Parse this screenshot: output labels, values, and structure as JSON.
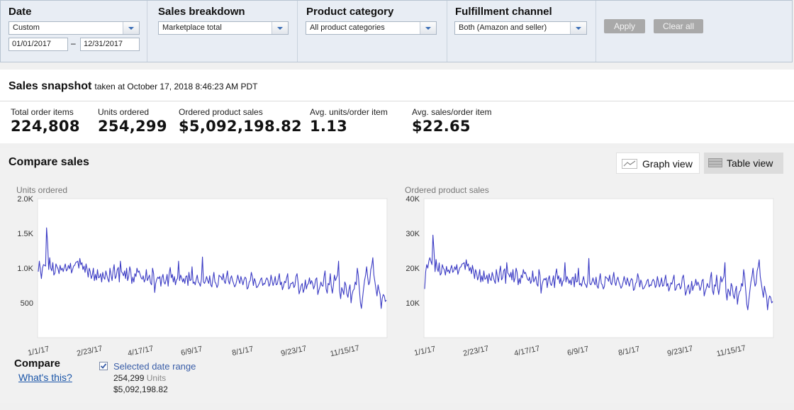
{
  "filters": {
    "date": {
      "title": "Date",
      "preset": "Custom",
      "from": "01/01/2017",
      "dash": "–",
      "to": "12/31/2017"
    },
    "sales_breakdown": {
      "title": "Sales breakdown",
      "value": "Marketplace total"
    },
    "product_category": {
      "title": "Product category",
      "value": "All product categories"
    },
    "fulfillment": {
      "title": "Fulfillment channel",
      "value": "Both (Amazon and seller)"
    },
    "apply_label": "Apply",
    "clear_label": "Clear all"
  },
  "snapshot": {
    "title": "Sales snapshot",
    "subtitle": "taken at October 17, 2018 8:46:23 AM PDT",
    "metrics": [
      {
        "label": "Total order items",
        "value": "224,808"
      },
      {
        "label": "Units ordered",
        "value": "254,299"
      },
      {
        "label": "Ordered product sales",
        "value": "$5,092,198.82"
      },
      {
        "label": "Avg. units/order item",
        "value": "1.13"
      },
      {
        "label": "Avg. sales/order item",
        "value": "$22.65"
      }
    ]
  },
  "compare": {
    "title": "Compare sales",
    "graph_view": "Graph view",
    "table_view": "Table view",
    "compare_label": "Compare",
    "whats_this": "What's this?",
    "selected_label": "Selected date range",
    "units_value": "254,299",
    "units_word": "Units",
    "sales_value": "$5,092,198.82",
    "checkbox_checked": true
  },
  "colors": {
    "line": "#3b3bc4",
    "link": "#1a55a8",
    "check": "#3a5ea8"
  },
  "chart_data": [
    {
      "type": "line",
      "title": "Units ordered",
      "ylim": [
        0,
        2000
      ],
      "yticks": [
        {
          "v": 2000,
          "t": "2.0K"
        },
        {
          "v": 1500,
          "t": "1.5K"
        },
        {
          "v": 1000,
          "t": "1.0K"
        },
        {
          "v": 500,
          "t": "500"
        }
      ],
      "xtick_labels": [
        "1/1/17",
        "2/23/17",
        "4/17/17",
        "6/9/17",
        "8/1/17",
        "9/23/17",
        "11/15/17"
      ],
      "grid": false,
      "series": [
        {
          "values": [
            950,
            1100,
            980,
            850,
            1000,
            1050,
            1040,
            1030,
            1580,
            1350,
            980,
            1150,
            1000,
            960,
            1080,
            900,
            930,
            1060,
            1020,
            990,
            920,
            1040,
            970,
            1000,
            950,
            1010,
            1060,
            960,
            980,
            1040,
            990,
            1070,
            930,
            980,
            1030,
            1040,
            1080,
            1090,
            1100,
            1000,
            1140,
            1050,
            1080,
            980,
            1030,
            940,
            1060,
            980,
            870,
            1000,
            950,
            850,
            900,
            1000,
            820,
            910,
            830,
            980,
            860,
            870,
            920,
            800,
            940,
            870,
            840,
            960,
            900,
            840,
            800,
            1000,
            900,
            820,
            960,
            1050,
            850,
            880,
            980,
            1010,
            800,
            1100,
            950,
            930,
            890,
            960,
            850,
            1000,
            820,
            880,
            1020,
            960,
            780,
            870,
            800,
            920,
            880,
            1000,
            940,
            960,
            910,
            860,
            840,
            890,
            800,
            840,
            980,
            820,
            860,
            900,
            790,
            760,
            1000,
            920,
            650,
            780,
            840,
            870,
            850,
            880,
            740,
            860,
            910,
            800,
            770,
            830,
            910,
            740,
            930,
            1010,
            860,
            910,
            800,
            880,
            760,
            830,
            850,
            1100,
            820,
            900,
            860,
            800,
            850,
            780,
            880,
            890,
            750,
            940,
            820,
            830,
            1020,
            780,
            800,
            760,
            840,
            900,
            800,
            780,
            740,
            840,
            1160,
            800,
            780,
            820,
            880,
            820,
            780,
            890,
            760,
            730,
            840,
            940,
            800,
            780,
            720,
            760,
            900,
            880,
            870,
            830,
            920,
            810,
            780,
            870,
            960,
            820,
            770,
            850,
            890,
            820,
            780,
            730,
            760,
            820,
            900,
            830,
            780,
            880,
            820,
            760,
            830,
            870,
            850,
            700,
            720,
            800,
            820,
            940,
            880,
            750,
            850,
            810,
            720,
            730,
            760,
            790,
            840,
            860,
            750,
            780,
            770,
            830,
            860,
            830,
            740,
            770,
            900,
            820,
            750,
            800,
            880,
            760,
            770,
            850,
            920,
            760,
            800,
            690,
            740,
            810,
            790,
            860,
            920,
            700,
            720,
            780,
            780,
            800,
            720,
            750,
            880,
            920,
            800,
            630,
            680,
            750,
            780,
            650,
            700,
            830,
            700,
            760,
            780,
            860,
            770,
            820,
            780,
            700,
            750,
            840,
            860,
            620,
            680,
            730,
            800,
            750,
            740,
            880,
            960,
            700,
            640,
            780,
            760,
            920,
            740,
            640,
            750,
            900,
            820,
            860,
            900,
            1100,
            680,
            560,
            720,
            680,
            620,
            800,
            760,
            630,
            580,
            690,
            760,
            500,
            620,
            680,
            700,
            800,
            760,
            1000,
            900,
            700,
            500,
            420,
            560,
            700,
            820,
            900,
            1020,
            870,
            760,
            800,
            980,
            1040,
            1150,
            900,
            800,
            700,
            600,
            760,
            680,
            620,
            420,
            560,
            620,
            600,
            520,
            540
          ]
        }
      ]
    },
    {
      "type": "line",
      "title": "Ordered product sales",
      "ylim": [
        0,
        40000
      ],
      "yticks": [
        {
          "v": 40000,
          "t": "40K"
        },
        {
          "v": 30000,
          "t": "30K"
        },
        {
          "v": 20000,
          "t": "20K"
        },
        {
          "v": 10000,
          "t": "10K"
        }
      ],
      "xtick_labels": [
        "1/1/17",
        "2/23/17",
        "4/17/17",
        "6/9/17",
        "8/1/17",
        "9/23/17",
        "11/15/17"
      ],
      "grid": false,
      "series": [
        {
          "values": [
            14000,
            19000,
            21000,
            20000,
            22000,
            23000,
            22000,
            21000,
            29500,
            25000,
            19000,
            22500,
            20000,
            19000,
            21500,
            18000,
            18500,
            21000,
            20000,
            19500,
            18000,
            20500,
            19000,
            19500,
            18500,
            19800,
            20800,
            18800,
            19200,
            20400,
            19500,
            21000,
            18200,
            19300,
            20200,
            20400,
            21200,
            21300,
            21600,
            19600,
            22400,
            20600,
            21200,
            19200,
            20200,
            18400,
            20800,
            19200,
            17000,
            19600,
            18600,
            16600,
            17600,
            19600,
            16000,
            17800,
            16200,
            19200,
            16800,
            17000,
            18000,
            15600,
            18400,
            17000,
            16400,
            18800,
            17600,
            16400,
            15600,
            19600,
            17600,
            16000,
            18800,
            20600,
            16600,
            17200,
            19200,
            19800,
            15600,
            21600,
            18600,
            18200,
            17400,
            18800,
            16600,
            19600,
            16000,
            17200,
            20000,
            18800,
            15200,
            17000,
            15600,
            18000,
            17200,
            19600,
            18400,
            18800,
            17800,
            16800,
            16400,
            17400,
            15600,
            16400,
            19200,
            16000,
            16800,
            17600,
            15400,
            14800,
            19600,
            18000,
            12800,
            15200,
            16400,
            17000,
            16600,
            17200,
            14400,
            16800,
            17800,
            15600,
            15000,
            16200,
            17800,
            14400,
            18200,
            19800,
            16800,
            17800,
            15600,
            17200,
            14800,
            16200,
            16600,
            21600,
            16000,
            17600,
            16800,
            15600,
            16600,
            15200,
            17200,
            17400,
            14600,
            18400,
            16000,
            16200,
            20000,
            15200,
            15600,
            14800,
            16400,
            17600,
            15600,
            15200,
            14400,
            16400,
            22800,
            15600,
            15200,
            16000,
            17200,
            16000,
            15200,
            17400,
            14800,
            14200,
            16400,
            18400,
            15600,
            15200,
            14000,
            14800,
            17600,
            17200,
            17000,
            16200,
            18000,
            15800,
            15200,
            17000,
            18800,
            16000,
            15000,
            16600,
            17400,
            16000,
            15200,
            14200,
            14800,
            16000,
            17600,
            16200,
            15200,
            17200,
            16000,
            14800,
            16200,
            17000,
            16600,
            13600,
            14000,
            15600,
            16000,
            18400,
            17200,
            14600,
            16600,
            15800,
            14000,
            14200,
            14800,
            15400,
            16400,
            16800,
            14600,
            15200,
            15000,
            16200,
            16800,
            16200,
            14400,
            15000,
            17600,
            16000,
            14600,
            15600,
            17200,
            14800,
            15000,
            16600,
            18000,
            14800,
            15600,
            13400,
            14400,
            15800,
            15400,
            16800,
            18000,
            13600,
            14000,
            15200,
            15200,
            15600,
            14000,
            14600,
            17200,
            18000,
            15600,
            12200,
            13200,
            14600,
            15200,
            12600,
            13600,
            16200,
            13600,
            14800,
            15200,
            16800,
            15000,
            16000,
            15200,
            13600,
            14600,
            16400,
            16800,
            12000,
            13200,
            14200,
            15600,
            14600,
            14400,
            17200,
            18800,
            13600,
            12400,
            15200,
            14800,
            18000,
            14400,
            12400,
            14600,
            17600,
            16000,
            16800,
            17600,
            21600,
            13200,
            10800,
            14000,
            13200,
            12000,
            15600,
            14800,
            12200,
            11200,
            13400,
            14800,
            9600,
            12000,
            13200,
            13600,
            15600,
            14800,
            19600,
            17600,
            13600,
            9600,
            8000,
            10800,
            13600,
            16000,
            17600,
            20000,
            17000,
            14800,
            15600,
            19200,
            20400,
            22400,
            17600,
            15600,
            13600,
            11600,
            14800,
            13200,
            12000,
            8000,
            10800,
            12000,
            11600,
            10000,
            10400
          ]
        }
      ]
    }
  ]
}
